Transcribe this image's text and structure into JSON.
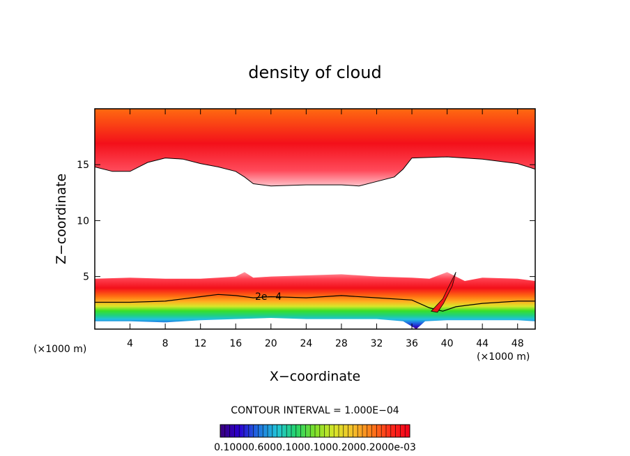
{
  "chart_data": {
    "type": "heatmap",
    "title": "density of cloud",
    "xlabel": "X−coordinate",
    "ylabel": "Z−coordinate",
    "x_unit_left": "(×1000 m)",
    "x_unit_right": "(×1000 m)",
    "xlim": [
      0,
      50
    ],
    "ylim": [
      0.3,
      20
    ],
    "x_ticks": [
      4,
      8,
      12,
      16,
      20,
      24,
      28,
      32,
      36,
      40,
      44,
      48
    ],
    "y_ticks": [
      5,
      10,
      15
    ],
    "contour_label": "2e−4",
    "contour_interval_text": "CONTOUR INTERVAL = 1.000E−04",
    "colorbar_labels_text": "0.10000.6000.1000.1000.2000.2000e-03",
    "colorscale": [
      "#3a007a",
      "#2b00d0",
      "#1f6fe0",
      "#21c4d8",
      "#25d46a",
      "#7fe02a",
      "#d8e62a",
      "#f5c02a",
      "#ff7a1a",
      "#ff2a1a",
      "#f3001a"
    ],
    "upper_cloud_bottom": {
      "x": [
        0,
        2,
        4,
        6,
        8,
        10,
        12,
        14,
        16,
        17,
        18,
        20,
        24,
        28,
        30,
        32,
        34,
        35,
        36,
        40,
        44,
        48,
        50
      ],
      "z": [
        14.8,
        14.4,
        14.4,
        15.2,
        15.6,
        15.5,
        15.1,
        14.8,
        14.4,
        13.9,
        13.3,
        13.1,
        13.2,
        13.2,
        13.1,
        13.5,
        13.9,
        14.6,
        15.6,
        15.7,
        15.5,
        15.1,
        14.6
      ]
    },
    "lower_cloud_top": {
      "x": [
        0,
        4,
        8,
        12,
        14,
        16,
        17,
        18,
        20,
        24,
        28,
        32,
        36,
        38,
        40,
        42,
        44,
        48,
        50
      ],
      "z": [
        4.8,
        4.9,
        4.8,
        4.8,
        4.9,
        5.0,
        5.4,
        4.9,
        5.0,
        5.1,
        5.2,
        5.0,
        4.9,
        4.8,
        5.4,
        4.6,
        4.9,
        4.8,
        4.6
      ]
    },
    "contour_2e4": {
      "x": [
        0,
        4,
        8,
        10,
        12,
        14,
        16,
        18,
        20,
        24,
        28,
        32,
        36,
        38,
        39.5,
        41,
        44,
        48,
        50
      ],
      "z": [
        2.7,
        2.7,
        2.8,
        3.0,
        3.2,
        3.4,
        3.3,
        3.1,
        3.2,
        3.1,
        3.3,
        3.1,
        2.9,
        2.2,
        1.9,
        2.3,
        2.6,
        2.8,
        2.8
      ]
    },
    "cloud_base": {
      "x": [
        0,
        4,
        8,
        12,
        16,
        20,
        24,
        28,
        32,
        35,
        36.5,
        37.5,
        40,
        44,
        48,
        50
      ],
      "z": [
        1.0,
        1.0,
        0.9,
        1.1,
        1.2,
        1.3,
        1.2,
        1.2,
        1.2,
        1.0,
        0.3,
        1.0,
        1.1,
        1.1,
        1.1,
        1.0
      ]
    }
  }
}
